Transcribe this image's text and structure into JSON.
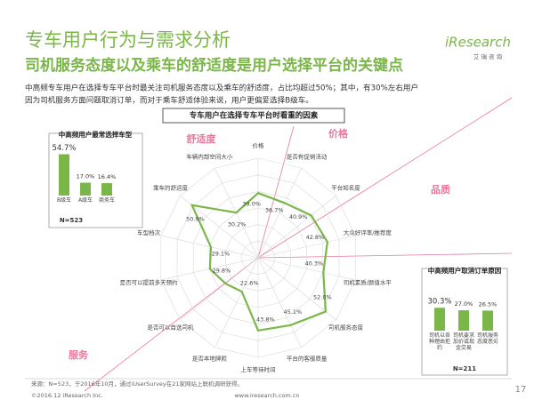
{
  "header": {
    "title": "专车用户行为与需求分析",
    "subtitle": "司机服务态度以及乘车的舒适度是用户选择平台的关键点",
    "description": [
      "中高频专车用户在选择专车平台时最关注司机服务态度以及乘车的舒适度，占比均超过50%；其中，有30%左右用户",
      "因为司机服务方面问题取消订单，而对于乘车舒适体验来说，用户更偏爱选择B级车。"
    ]
  },
  "logo": {
    "name": "iResearch",
    "cn": "艾 瑞 咨 询"
  },
  "chart_data": [
    {
      "type": "radar",
      "title": "专车用户在选择专车平台时看重的因素",
      "categories": [
        "价格",
        "是否有促销活动",
        "平台知名度",
        "大众好评率/推荐度",
        "司机素质/颜值水平",
        "司机服务态度",
        "平台的客服质量",
        "上车等待时间",
        "是否本地牌照",
        "是否可以自选司机",
        "是否可以提前多天预约",
        "车型档次",
        "乘车的舒适度",
        "车辆内部空间大小"
      ],
      "values": [
        39.0,
        36.7,
        40.9,
        42.8,
        40.3,
        52.0,
        45.1,
        43.8,
        22.6,
        25,
        29.8,
        29.1,
        50.9,
        30.2
      ],
      "value_labels": [
        "39.0%",
        "36.7%",
        "40.9%",
        "42.8%",
        "40.3%",
        "52.0%",
        "45.1%",
        "43.8%",
        "22.6%",
        null,
        "29.8%",
        "29.1%",
        "50.9%",
        "30.2%"
      ],
      "rlim": [
        0,
        60
      ],
      "rticks": [
        10,
        20,
        30,
        40,
        50,
        60
      ],
      "color": "#7ab648",
      "annotations": [
        "舒适度",
        "价格",
        "品质",
        "服务"
      ]
    },
    {
      "type": "bar",
      "title": "中高频用户最常选择车型",
      "categories": [
        "B级车",
        "A级车",
        "商务车"
      ],
      "values": [
        54.7,
        17.0,
        16.4
      ],
      "value_labels": [
        "54.7%",
        "17.0%",
        "16.4%"
      ],
      "note": "N=523",
      "color": "#7ab648"
    },
    {
      "type": "bar",
      "title": "中高频用户取消订单原因",
      "categories": [
        "司机以各种理由拒约",
        "司机要求加价或现金交易",
        "司机服务态度恶劣"
      ],
      "values": [
        30.3,
        27.0,
        26.5
      ],
      "value_labels": [
        "30.3%",
        "27.0%",
        "26.5%"
      ],
      "note": "N=211",
      "color": "#7ab648"
    }
  ],
  "footer": {
    "source": "来源：N=523，于2016年10月，通过iUserSurvey在21家网站上联机调研获得。",
    "copyright": "©2016.12 iResearch Inc.",
    "url": "www.iresearch.com.cn",
    "page": "17"
  }
}
